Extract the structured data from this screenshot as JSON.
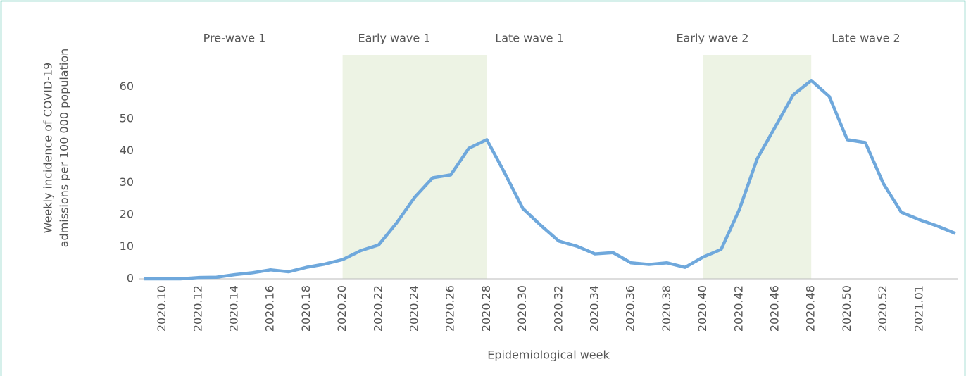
{
  "chart_data": {
    "type": "line",
    "xlabel": "Epidemiological week",
    "ylabel": [
      "Weekly incidence of COVID-19",
      "admissions per 100 000 population"
    ],
    "categories": [
      null,
      "2020.10",
      null,
      "2020.12",
      null,
      "2020.14",
      null,
      "2020.16",
      null,
      "2020.18",
      null,
      "2020.20",
      null,
      "2020.22",
      null,
      "2020.24",
      null,
      "2020.26",
      null,
      "2020.28",
      null,
      "2020.30",
      null,
      "2020.32",
      null,
      "2020.34",
      null,
      "2020.36",
      null,
      "2020.38",
      null,
      "2020.40",
      null,
      "2020.42",
      null,
      "2020.46",
      null,
      "2020.48",
      null,
      "2020.50",
      null,
      "2020.52",
      null,
      "2021.01",
      null,
      null
    ],
    "series": [
      {
        "color": "#6fa8dc",
        "values": [
          0,
          0,
          0,
          0.4,
          0.5,
          1.3,
          1.9,
          2.8,
          2.2,
          3.6,
          4.6,
          6,
          8.8,
          10.6,
          17.5,
          25.5,
          31.6,
          32.5,
          40.8,
          43.5,
          33,
          22,
          16.7,
          11.8,
          10.2,
          7.8,
          8.2,
          5,
          4.5,
          5,
          3.6,
          6.8,
          9.2,
          21.5,
          37.5,
          47.5,
          57.5,
          62,
          57,
          43.5,
          42.6,
          29.8,
          20.8,
          18.5,
          16.5,
          14.2
        ]
      }
    ],
    "ylim": [
      0,
      70
    ],
    "yticks": [
      0,
      10,
      20,
      30,
      40,
      50,
      60
    ],
    "periods": [
      "Pre-wave 1",
      "Early wave 1",
      "Late wave 1",
      "Early wave 2",
      "Late wave 2"
    ],
    "shaded": [
      {
        "from": "2020.20",
        "to": "2020.28",
        "color": "#edf3e4"
      },
      {
        "from": "2020.40",
        "to": "2020.48",
        "color": "#edf3e4"
      }
    ]
  }
}
